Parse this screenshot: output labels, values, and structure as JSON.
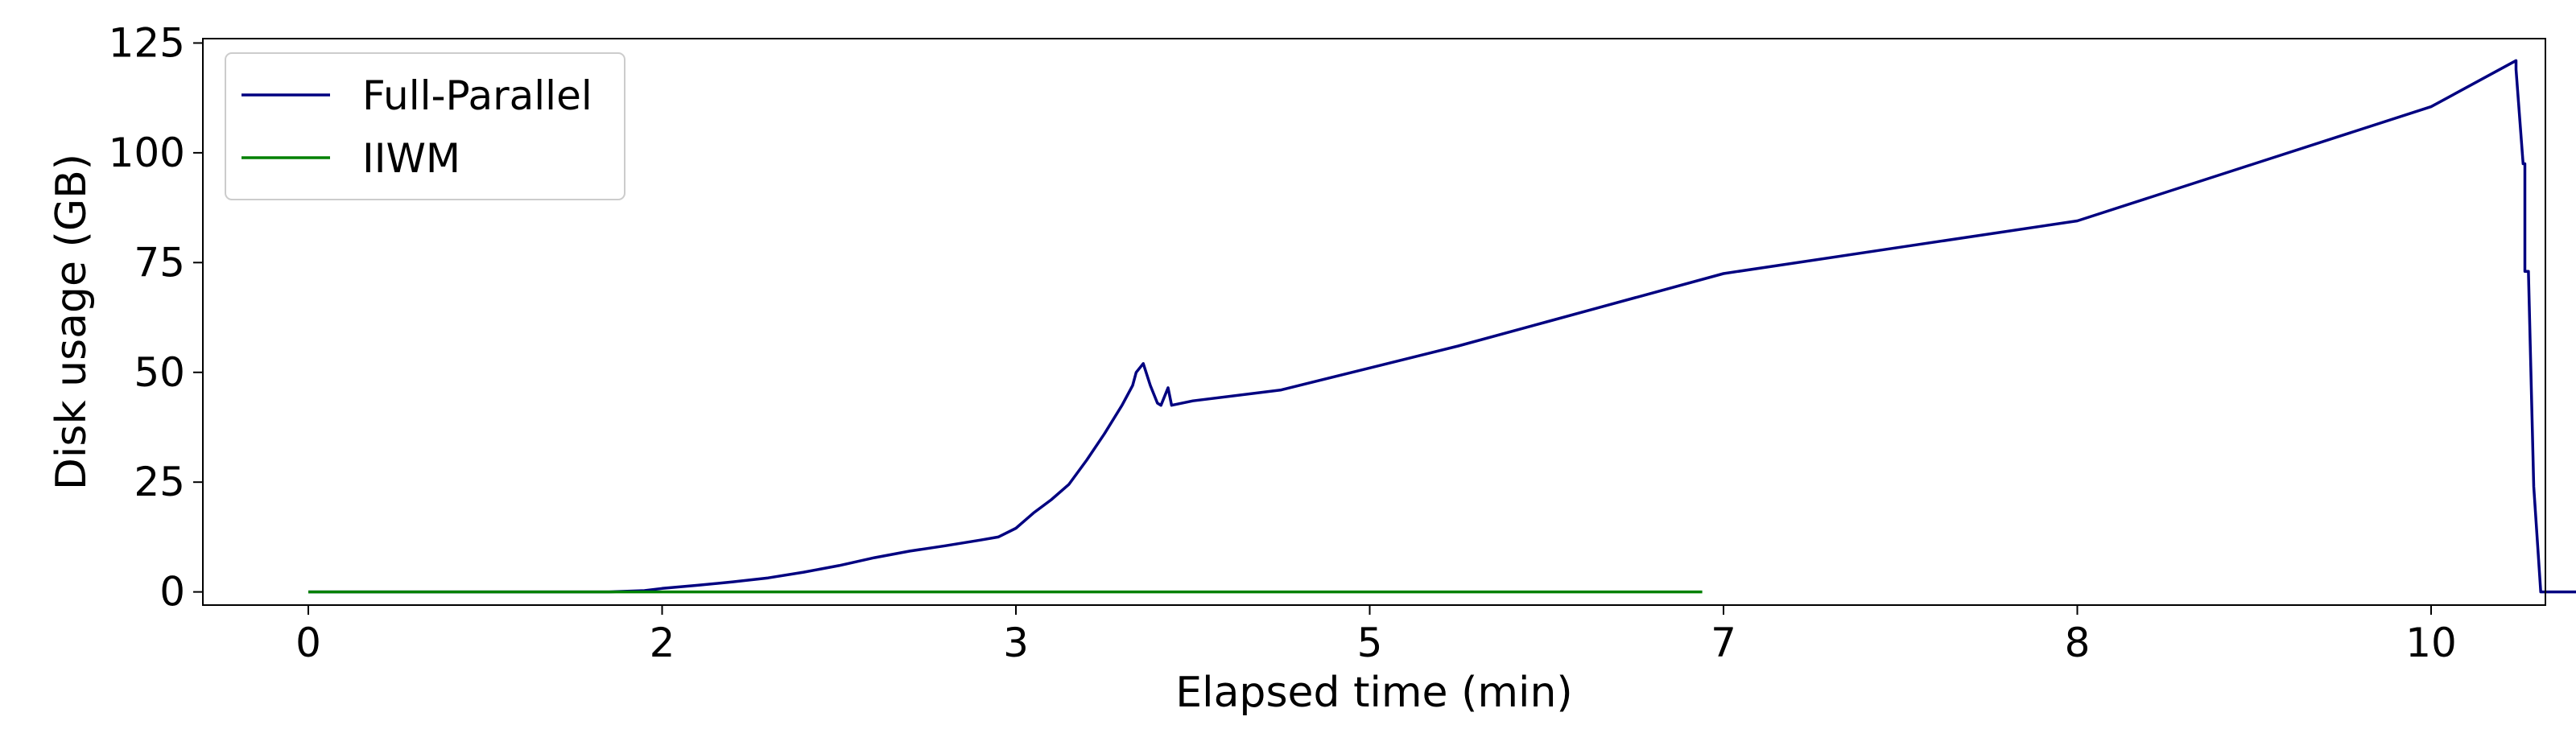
{
  "chart_data": {
    "type": "line",
    "title": "",
    "xlabel": "Elapsed time (min)",
    "ylabel": "Disk usage (GB)",
    "xlim": [
      -0.3,
      10.32
    ],
    "ylim": [
      -3,
      126
    ],
    "x_ticks": [
      0,
      2,
      3,
      5,
      7,
      8,
      10
    ],
    "x_tick_labels": [
      "0",
      "2",
      "3",
      "5",
      "7",
      "8",
      "10"
    ],
    "y_ticks": [
      0,
      25,
      50,
      75,
      100,
      125
    ],
    "y_tick_labels": [
      "0",
      "25",
      "50",
      "75",
      "100",
      "125"
    ],
    "grid": false,
    "legend": {
      "position": "top-left"
    },
    "series": [
      {
        "name": "Full-Parallel",
        "color": "#000080",
        "x": [
          0.0,
          1.7,
          1.9,
          2.0,
          2.1,
          2.2,
          2.3,
          2.4,
          2.5,
          2.6,
          2.7,
          2.8,
          2.9,
          2.95,
          3.0,
          3.1,
          3.2,
          3.3,
          3.4,
          3.5,
          3.6,
          3.66,
          3.68,
          3.72,
          3.76,
          3.8,
          3.82,
          3.84,
          3.86,
          3.88,
          4.0,
          4.5,
          5.0,
          5.5,
          6.0,
          6.5,
          7.0,
          7.5,
          8.0,
          8.5,
          9.0,
          9.5,
          10.0,
          10.48,
          10.48,
          10.52,
          10.53,
          10.53,
          10.55,
          10.58,
          10.58,
          10.62,
          10.62,
          10.65,
          10.72,
          10.72,
          10.95
        ],
        "y": [
          0,
          0,
          0.3,
          0.8,
          1.5,
          2.3,
          3.2,
          4.5,
          6.0,
          7.8,
          9.3,
          10.5,
          11.8,
          12.5,
          14.5,
          18.0,
          21.0,
          24.5,
          30.0,
          36.0,
          42.5,
          47.0,
          50.0,
          52.0,
          47.0,
          43.0,
          42.5,
          44.5,
          46.5,
          42.5,
          43.5,
          46.0,
          51.0,
          56.0,
          61.5,
          67.0,
          72.5,
          78.5,
          84.5,
          91.0,
          97.5,
          104.0,
          110.5,
          121.0,
          119.0,
          97.5,
          97.5,
          73.0,
          73.0,
          24.0,
          24.0,
          0,
          0,
          0,
          0,
          0,
          0
        ]
      },
      {
        "name": "IIWM",
        "color": "#008000",
        "x": [
          0.0,
          6.88
        ],
        "y": [
          0,
          0
        ]
      }
    ]
  }
}
